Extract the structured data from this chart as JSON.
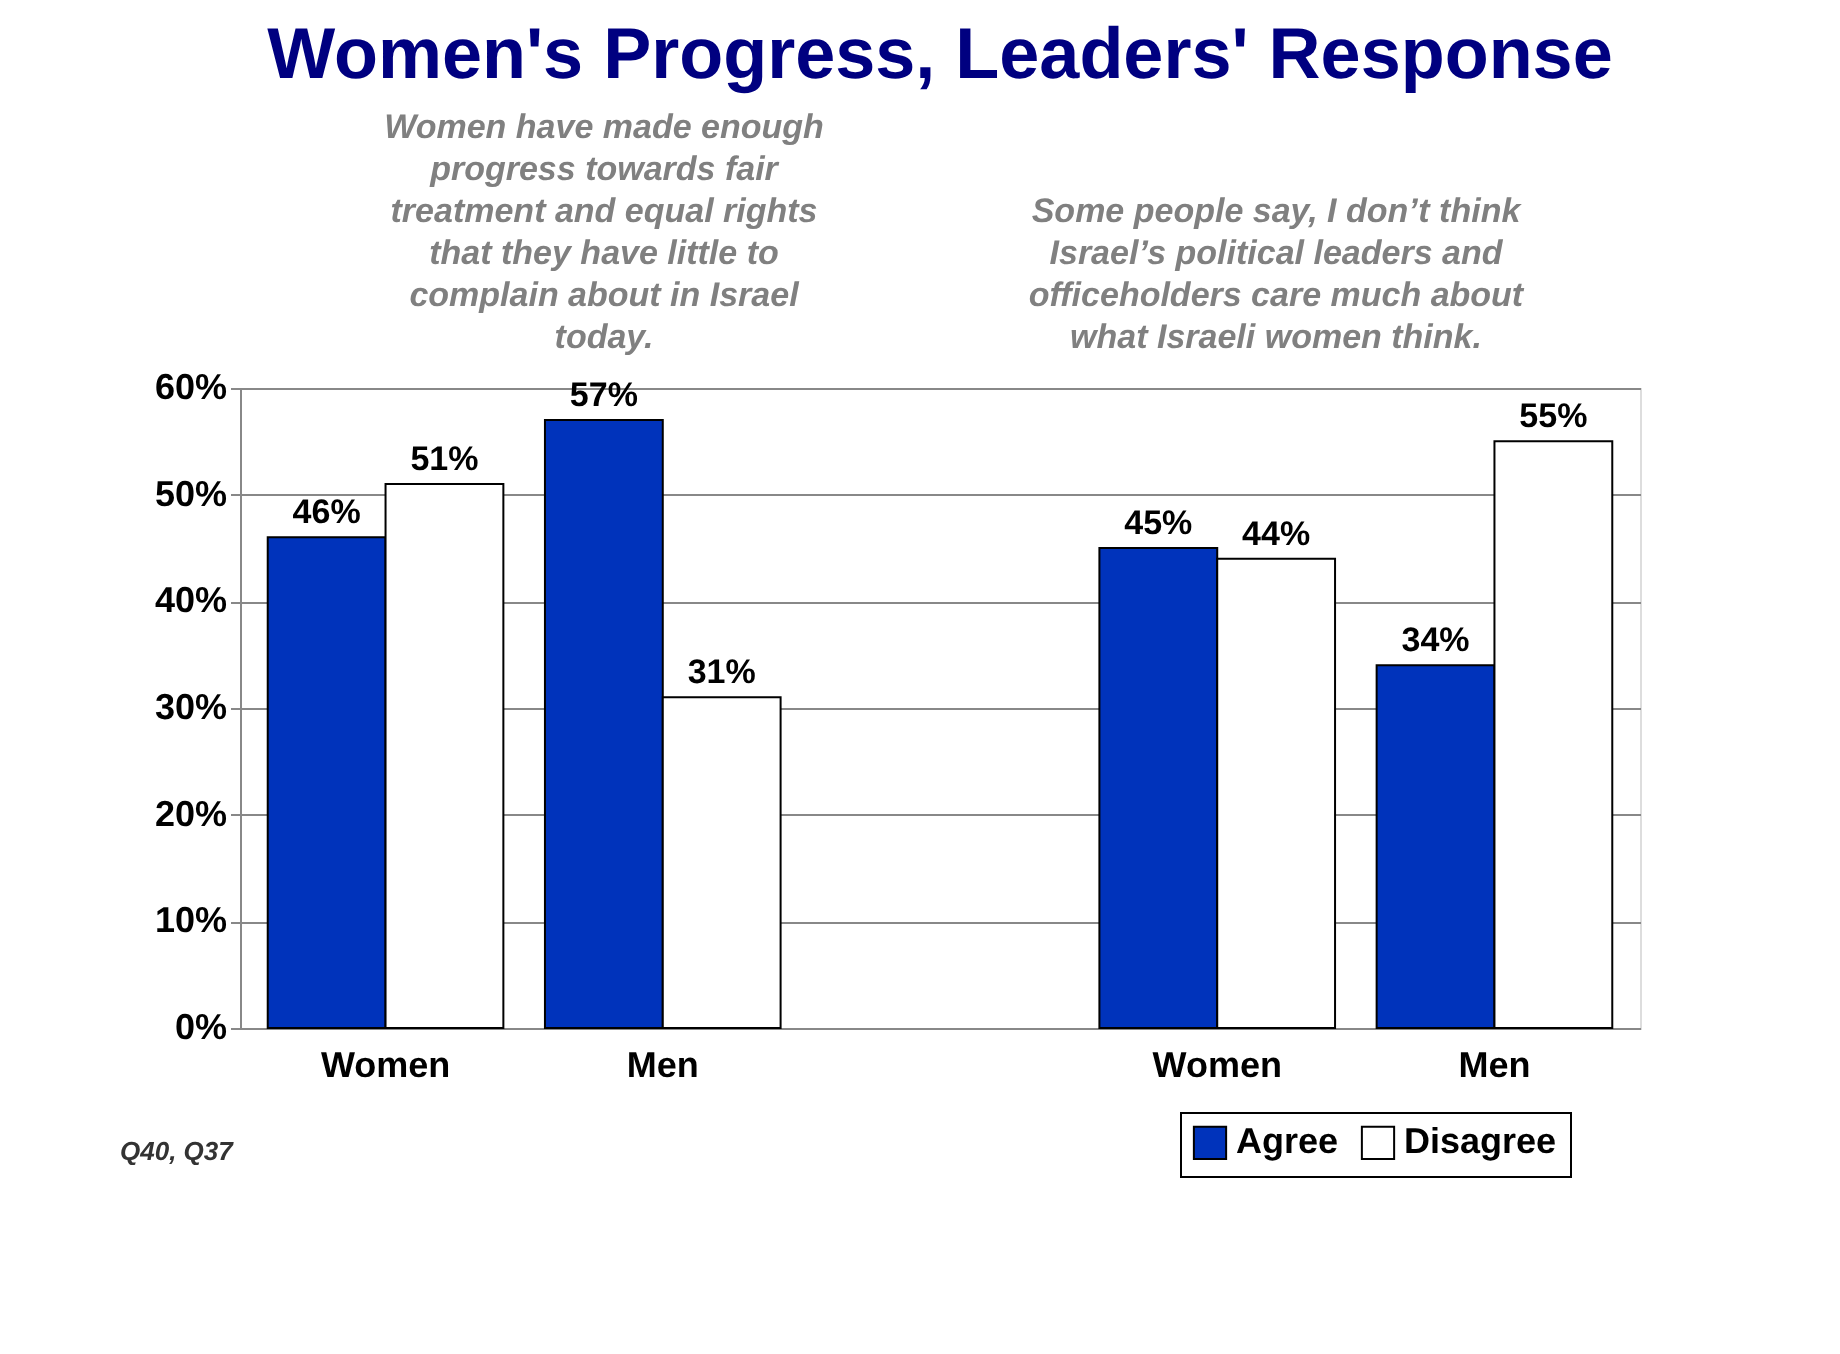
{
  "chart_data": {
    "type": "bar",
    "title": "Women's Progress, Leaders' Response",
    "categories": [
      "Women",
      "Men",
      null,
      "Women",
      "Men"
    ],
    "series": [
      {
        "name": "Agree",
        "color": "#0033bb",
        "values": [
          46,
          57,
          null,
          45,
          34
        ],
        "value_labels": [
          "46%",
          "57%",
          null,
          "45%",
          "34%"
        ]
      },
      {
        "name": "Disagree",
        "color": "#ffffff",
        "values": [
          51,
          31,
          null,
          44,
          55
        ],
        "value_labels": [
          "51%",
          "31%",
          null,
          "44%",
          "55%"
        ]
      }
    ],
    "ylim": [
      0,
      60
    ],
    "yticks": [
      {
        "value": 0,
        "label": "0%"
      },
      {
        "value": 10,
        "label": "10%"
      },
      {
        "value": 20,
        "label": "20%"
      },
      {
        "value": 30,
        "label": "30%"
      },
      {
        "value": 40,
        "label": "40%"
      },
      {
        "value": 50,
        "label": "50%"
      },
      {
        "value": 60,
        "label": "60%"
      }
    ],
    "grid": "y",
    "legend": "bottom right",
    "annotations": [
      "Women have made enough progress towards fair treatment and equal rights that they have little to complain about in Israel today.",
      "Some people say, I don’t think Israel’s political leaders and officeholders care much about what Israeli women think.",
      "Q40, Q37"
    ]
  }
}
